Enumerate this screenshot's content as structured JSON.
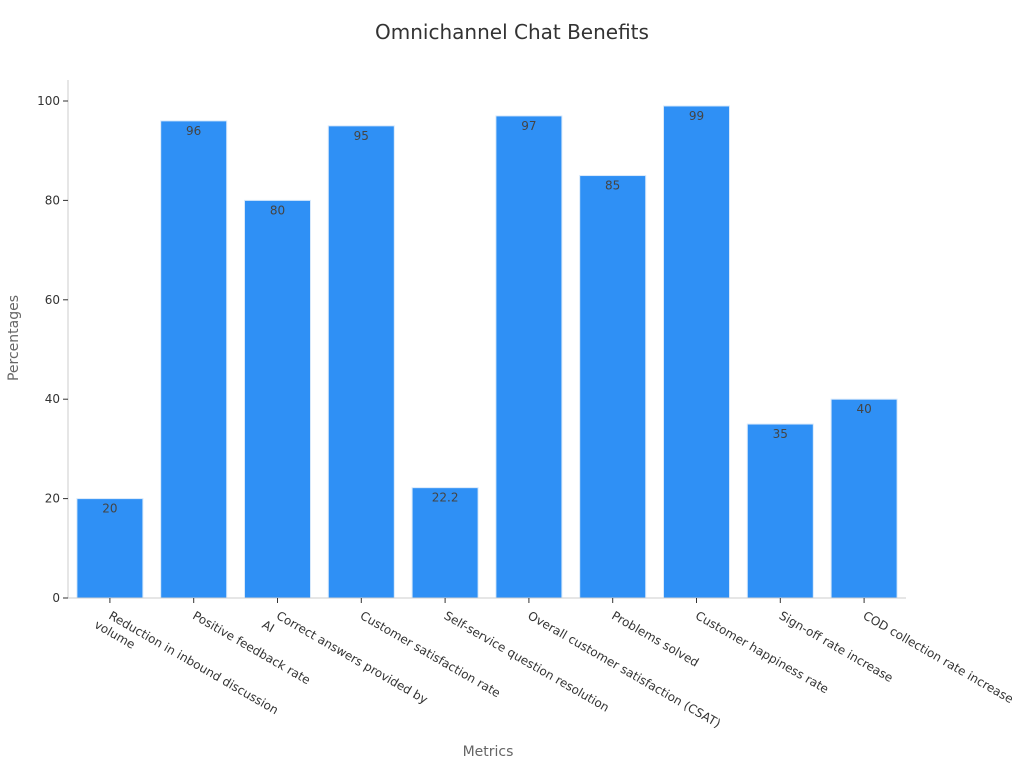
{
  "chart_data": {
    "type": "bar",
    "title": "Omnichannel Chat Benefits",
    "xlabel": "Metrics",
    "ylabel": "Percentages",
    "categories": [
      [
        "Reduction in inbound discussion",
        "volume"
      ],
      [
        "Positive feedback rate"
      ],
      [
        "Correct answers provided by",
        "AI"
      ],
      [
        "Customer satisfaction rate"
      ],
      [
        "Self-service question resolution"
      ],
      [
        "Overall customer satisfaction (CSAT)"
      ],
      [
        "Problems solved"
      ],
      [
        "Customer happiness rate"
      ],
      [
        "Sign-off rate increase"
      ],
      [
        "COD collection rate increase"
      ]
    ],
    "values": [
      20,
      96,
      80,
      95,
      22.2,
      97,
      85,
      99,
      35,
      40
    ],
    "data_labels": [
      "20",
      "96",
      "80",
      "95",
      "22.2",
      "97",
      "85",
      "99",
      "35",
      "40"
    ],
    "ylim": [
      0,
      104
    ],
    "yticks": [
      0,
      20,
      40,
      60,
      80,
      100
    ],
    "grid": false,
    "legend": "none",
    "bar_color": "#2f90f5"
  }
}
